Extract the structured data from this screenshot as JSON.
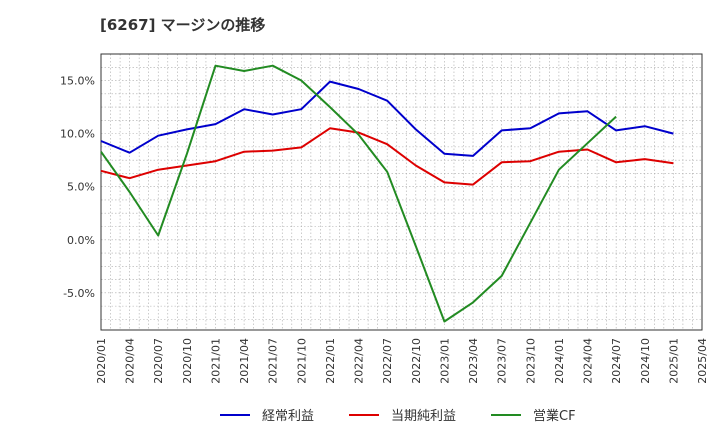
{
  "chart_data": {
    "type": "line",
    "title": "[6267]  マージンの推移",
    "xlabel": "",
    "ylabel": "",
    "ylim": [
      -8.5,
      17.5
    ],
    "xlim": [
      "2020/01",
      "2025/04"
    ],
    "yticks": [
      15.0,
      10.0,
      5.0,
      0.0,
      -5.0
    ],
    "ytick_labels": [
      "15.0%",
      "10.0%",
      "5.0%",
      "0.0%",
      "-5.0%"
    ],
    "xtick_labels": [
      "2020/01",
      "2020/04",
      "2020/07",
      "2020/10",
      "2021/01",
      "2021/04",
      "2021/07",
      "2021/10",
      "2022/01",
      "2022/04",
      "2022/07",
      "2022/10",
      "2023/01",
      "2023/04",
      "2023/07",
      "2023/10",
      "2024/01",
      "2024/04",
      "2024/07",
      "2024/10",
      "2025/01",
      "2025/04"
    ],
    "grid": true,
    "legend_position": "bottom",
    "series": [
      {
        "name": "経常利益",
        "color": "#0000cc",
        "x": [
          "2020/01",
          "2020/04",
          "2020/07",
          "2020/10",
          "2021/01",
          "2021/04",
          "2021/07",
          "2021/10",
          "2022/01",
          "2022/04",
          "2022/07",
          "2022/10",
          "2023/01",
          "2023/04",
          "2023/07",
          "2023/10",
          "2024/01",
          "2024/04",
          "2024/07",
          "2024/10",
          "2025/01"
        ],
        "values": [
          9.3,
          8.2,
          9.8,
          10.4,
          10.9,
          12.3,
          11.8,
          12.3,
          14.9,
          14.2,
          13.1,
          10.4,
          8.1,
          7.9,
          10.3,
          10.5,
          11.9,
          12.1,
          10.3,
          10.7,
          10.0
        ]
      },
      {
        "name": "当期純利益",
        "color": "#dd0000",
        "x": [
          "2020/01",
          "2020/04",
          "2020/07",
          "2020/10",
          "2021/01",
          "2021/04",
          "2021/07",
          "2021/10",
          "2022/01",
          "2022/04",
          "2022/07",
          "2022/10",
          "2023/01",
          "2023/04",
          "2023/07",
          "2023/10",
          "2024/01",
          "2024/04",
          "2024/07",
          "2024/10",
          "2025/01"
        ],
        "values": [
          6.5,
          5.8,
          6.6,
          7.0,
          7.4,
          8.3,
          8.4,
          8.7,
          10.5,
          10.1,
          9.0,
          7.0,
          5.4,
          5.2,
          7.3,
          7.4,
          8.3,
          8.5,
          7.3,
          7.6,
          7.2
        ]
      },
      {
        "name": "営業CF",
        "color": "#228b22",
        "x": [
          "2020/01",
          "2020/04",
          "2020/07",
          "2020/10",
          "2021/01",
          "2021/04",
          "2021/07",
          "2021/10",
          "2022/01",
          "2022/04",
          "2022/07",
          "2022/10",
          "2023/01",
          "2023/04",
          "2023/07",
          "2023/10",
          "2024/01",
          "2024/04",
          "2024/07"
        ],
        "values": [
          8.3,
          4.5,
          0.4,
          8.1,
          16.4,
          15.9,
          16.4,
          15.0,
          12.5,
          9.9,
          6.4,
          -0.6,
          -7.7,
          -5.9,
          -3.4,
          1.6,
          6.6,
          9.1,
          11.6
        ]
      }
    ]
  }
}
